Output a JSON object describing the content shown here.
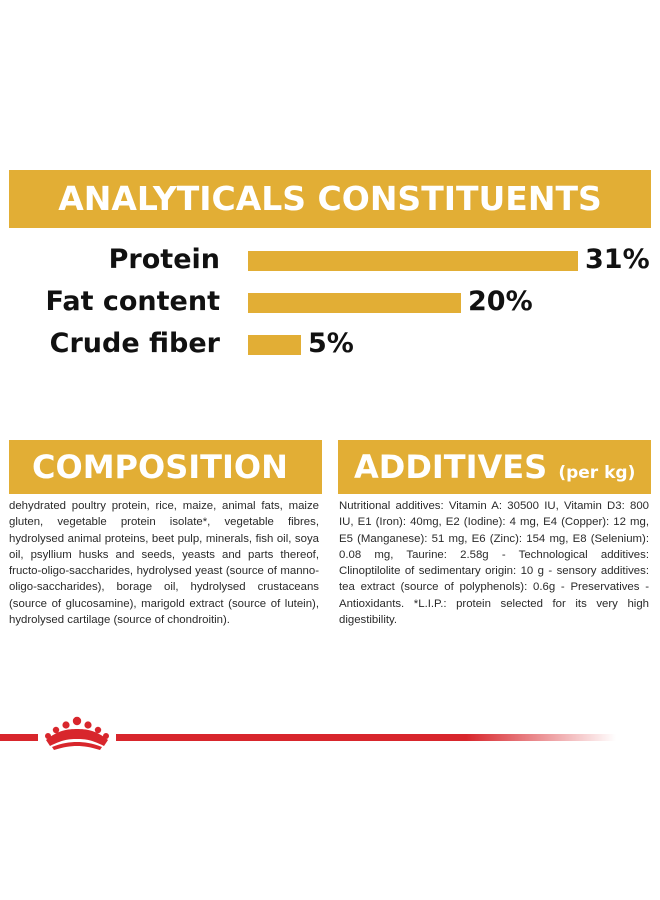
{
  "analytics": {
    "title": "ANALYTICALS CONSTITUENTS",
    "rows": [
      {
        "label": "Protein",
        "percent": "31%",
        "value": 31
      },
      {
        "label": "Fat content",
        "percent": "20%",
        "value": 20
      },
      {
        "label": "Crude fiber",
        "percent": "5%",
        "value": 5
      }
    ]
  },
  "composition": {
    "title": "COMPOSITION",
    "text": "dehydrated poultry protein, rice, maize, animal fats, maize gluten, vegetable protein isolate*, vegetable fibres, hydrolysed animal proteins, beet pulp, minerals, fish oil, soya oil, psyllium husks and seeds, yeasts and parts thereof, fructo-oligo-saccharides, hydrolysed yeast (source of manno-oligo-saccharides), borage oil, hydrolysed crustaceans (source of glucosamine), marigold extract (source of lutein), hydrolysed cartilage (source of chondroitin)."
  },
  "additives": {
    "title": "ADDITIVES",
    "title_suffix": "(per kg)",
    "text": "Nutritional additives: Vitamin A: 30500 IU, Vitamin D3: 800 IU, E1 (Iron): 40mg, E2 (Iodine): 4 mg, E4 (Copper): 12 mg, E5 (Manganese): 51 mg, E6 (Zinc): 154 mg, E8 (Selenium): 0.08 mg, Taurine: 2.58g - Technological additives: Clinoptilolite of sedimentary origin: 10 g - sensory additives: tea extract (source of polyphenols): 0.6g - Preservatives - Antioxidants. *L.I.P.: protein selected for its very high digestibility."
  },
  "colors": {
    "accent": "#e2ae35",
    "brand_red": "#d8262c"
  },
  "icons": {
    "brand_logo": "crown-icon"
  }
}
